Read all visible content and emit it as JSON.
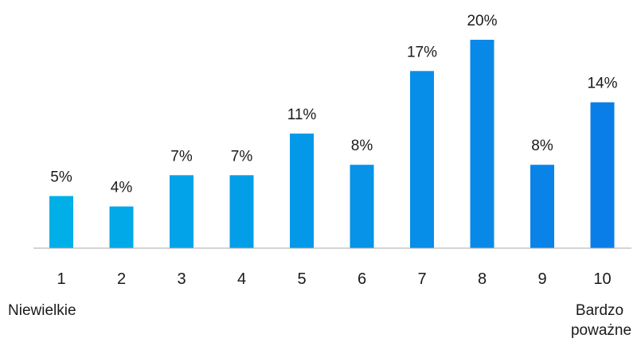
{
  "chart_data": {
    "type": "bar",
    "title": "",
    "xlabel": "",
    "ylabel": "",
    "categories": [
      "1",
      "2",
      "3",
      "4",
      "5",
      "6",
      "7",
      "8",
      "9",
      "10"
    ],
    "values": [
      5,
      4,
      7,
      7,
      11,
      8,
      17,
      20,
      8,
      14
    ],
    "value_labels": [
      "5%",
      "4%",
      "7%",
      "7%",
      "11%",
      "8%",
      "17%",
      "20%",
      "8%",
      "14%"
    ],
    "unit": "%",
    "ylim": [
      0,
      20
    ],
    "grid": false,
    "legend": "none",
    "color_gradient": [
      "#00aee8",
      "#0a7ee8"
    ],
    "axis_color": "#a9a9a9",
    "scale_end_labels": {
      "low": "Niewielkie",
      "high_line1": "Bardzo",
      "high_line2": "poważne"
    }
  }
}
